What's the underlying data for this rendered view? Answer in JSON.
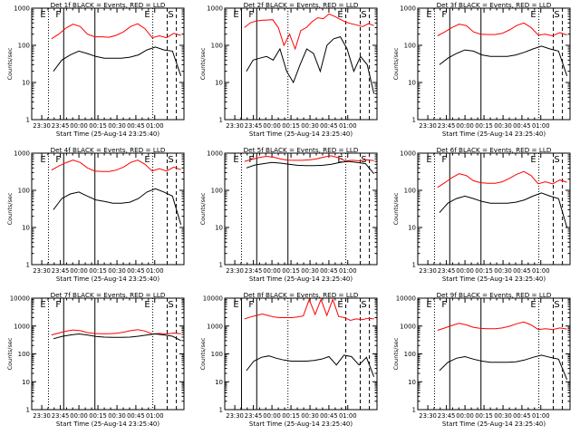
{
  "figure": {
    "background": "#ffffff",
    "axis_color": "#000000",
    "events_color": "#000000",
    "lld_color": "#ff0000"
  },
  "chart_data": [
    {
      "type": "line",
      "title": "Det 1f BLACK = Events, RED = LLD",
      "xlabel": "Start Time (25-Aug-14 23:25:40)",
      "ylabel": "Counts/sec",
      "yscale": "log",
      "ylim": [
        1,
        1000
      ],
      "yticks": [
        "1",
        "10",
        "100",
        "1000"
      ],
      "xticks": [
        "23:30",
        "23:45",
        "00:00",
        "00:15",
        "00:30",
        "00:45",
        "01:00"
      ],
      "markers": [
        {
          "label": "E",
          "style": "dotted"
        },
        {
          "label": "F",
          "style": "solid"
        },
        {
          "label": "",
          "style": "solid"
        },
        {
          "label": "E",
          "style": "dotted"
        },
        {
          "label": "",
          "style": "dashed"
        },
        {
          "label": "S",
          "style": "dashed"
        }
      ],
      "series": [
        {
          "role": "events",
          "start_index": 1,
          "values": [
            20,
            40,
            55,
            70,
            60,
            50,
            45,
            45,
            45,
            48,
            55,
            75,
            90,
            75,
            70,
            15
          ]
        },
        {
          "role": "lld",
          "start_index": 0,
          "values": [
            150,
            200,
            290,
            370,
            320,
            200,
            170,
            170,
            165,
            185,
            230,
            320,
            380,
            280,
            160,
            180,
            160,
            210,
            185
          ]
        }
      ]
    },
    {
      "type": "line",
      "title": "Det 2f BLACK = Events, RED = LLD",
      "xlabel": "Start Time (25-Aug-14 23:25:40)",
      "ylabel": "Counts/sec",
      "yscale": "log",
      "ylim": [
        1,
        1000
      ],
      "yticks": [
        "1",
        "10",
        "100",
        "1000"
      ],
      "xticks": [
        "23:30",
        "23:45",
        "00:00",
        "00:15",
        "00:30",
        "00:45",
        "01:00"
      ],
      "markers": [
        {
          "label": "E",
          "style": "solid"
        },
        {
          "label": "F",
          "style": "solid"
        },
        {
          "label": "",
          "style": "dotted"
        },
        {
          "label": "E",
          "style": "dashed"
        },
        {
          "label": "",
          "style": "dashed"
        },
        {
          "label": "S",
          "style": "dashed"
        }
      ],
      "series": [
        {
          "role": "events",
          "start_index": 1,
          "values": [
            20,
            40,
            45,
            50,
            40,
            80,
            20,
            10,
            30,
            80,
            60,
            20,
            100,
            150,
            170,
            80,
            20,
            50,
            30,
            5
          ]
        },
        {
          "role": "lld",
          "start_index": 0,
          "values": [
            300,
            400,
            450,
            470,
            480,
            490,
            300,
            100,
            200,
            80,
            250,
            300,
            430,
            550,
            520,
            700,
            600,
            500,
            420,
            380,
            350,
            320,
            380,
            340
          ]
        }
      ]
    },
    {
      "type": "line",
      "title": "Det 3f BLACK = Events, RED = LLD",
      "xlabel": "Start Time (25-Aug-14 23:25:40)",
      "ylabel": "Counts/sec",
      "yscale": "log",
      "ylim": [
        1,
        1000
      ],
      "yticks": [
        "1",
        "10",
        "100",
        "1000"
      ],
      "xticks": [
        "23:30",
        "23:45",
        "00:00",
        "00:15",
        "00:30",
        "00:45",
        "01:00"
      ],
      "markers": [
        {
          "label": "E",
          "style": "dotted"
        },
        {
          "label": "F",
          "style": "solid"
        },
        {
          "label": "",
          "style": "solid"
        },
        {
          "label": "E",
          "style": "dotted"
        },
        {
          "label": "",
          "style": "dashed"
        },
        {
          "label": "S",
          "style": "dashed"
        }
      ],
      "series": [
        {
          "role": "events",
          "start_index": 1,
          "values": [
            30,
            45,
            60,
            75,
            70,
            55,
            50,
            50,
            50,
            55,
            65,
            80,
            95,
            80,
            70,
            15
          ]
        },
        {
          "role": "lld",
          "start_index": 0,
          "values": [
            180,
            230,
            300,
            370,
            340,
            230,
            200,
            195,
            195,
            210,
            260,
            340,
            400,
            300,
            190,
            200,
            180,
            220,
            190
          ]
        }
      ]
    },
    {
      "type": "line",
      "title": "Det 4f BLACK = Events, RED = LLD",
      "xlabel": "Start Time (25-Aug-14 23:25:40)",
      "ylabel": "Counts/sec",
      "yscale": "log",
      "ylim": [
        1,
        1000
      ],
      "yticks": [
        "1",
        "10",
        "100",
        "1000"
      ],
      "xticks": [
        "23:30",
        "23:45",
        "00:00",
        "00:15",
        "00:30",
        "00:45",
        "01:00"
      ],
      "markers": [
        {
          "label": "E",
          "style": "dotted"
        },
        {
          "label": "F",
          "style": "solid"
        },
        {
          "label": "",
          "style": "solid"
        },
        {
          "label": "E",
          "style": "dotted"
        },
        {
          "label": "",
          "style": "dashed"
        },
        {
          "label": "S",
          "style": "dashed"
        }
      ],
      "series": [
        {
          "role": "events",
          "start_index": 1,
          "values": [
            30,
            60,
            80,
            90,
            70,
            55,
            50,
            45,
            45,
            48,
            60,
            90,
            110,
            90,
            70,
            12
          ]
        },
        {
          "role": "lld",
          "start_index": 0,
          "values": [
            350,
            450,
            550,
            650,
            560,
            400,
            330,
            320,
            320,
            350,
            420,
            560,
            650,
            500,
            330,
            380,
            330,
            420,
            360
          ]
        }
      ]
    },
    {
      "type": "line",
      "title": "Det 5f BLACK = Events, RED = LLD",
      "xlabel": "Start Time (25-Aug-14 23:25:40)",
      "ylabel": "Counts/sec",
      "yscale": "log",
      "ylim": [
        1,
        1000
      ],
      "yticks": [
        "1",
        "10",
        "100",
        "1000"
      ],
      "xticks": [
        "23:30",
        "23:45",
        "00:00",
        "00:15",
        "00:30",
        "00:45",
        "01:00"
      ],
      "markers": [
        {
          "label": "E",
          "style": "dotted"
        },
        {
          "label": "F",
          "style": "solid"
        },
        {
          "label": "",
          "style": "solid"
        },
        {
          "label": "E",
          "style": "dotted"
        },
        {
          "label": "",
          "style": "dashed"
        },
        {
          "label": "S",
          "style": "dashed"
        }
      ],
      "series": [
        {
          "role": "events",
          "start_index": 1,
          "values": [
            400,
            480,
            520,
            560,
            540,
            500,
            470,
            460,
            460,
            470,
            500,
            560,
            600,
            560,
            520,
            280
          ]
        },
        {
          "role": "lld",
          "start_index": 0,
          "values": [
            600,
            680,
            760,
            820,
            780,
            700,
            650,
            640,
            640,
            660,
            700,
            780,
            850,
            760,
            620,
            640,
            620,
            660,
            630
          ]
        }
      ]
    },
    {
      "type": "line",
      "title": "Det 6f BLACK = Events, RED = LLD",
      "xlabel": "Start Time (25-Aug-14 23:25:40)",
      "ylabel": "Counts/sec",
      "yscale": "log",
      "ylim": [
        1,
        1000
      ],
      "yticks": [
        "1",
        "10",
        "100",
        "1000"
      ],
      "xticks": [
        "23:30",
        "23:45",
        "00:00",
        "00:15",
        "00:30",
        "00:45",
        "01:00"
      ],
      "markers": [
        {
          "label": "E",
          "style": "dotted"
        },
        {
          "label": "F",
          "style": "solid"
        },
        {
          "label": "",
          "style": "solid"
        },
        {
          "label": "E",
          "style": "dotted"
        },
        {
          "label": "",
          "style": "dashed"
        },
        {
          "label": "S",
          "style": "dashed"
        }
      ],
      "series": [
        {
          "role": "events",
          "start_index": 1,
          "values": [
            25,
            45,
            60,
            70,
            60,
            50,
            45,
            45,
            45,
            48,
            55,
            70,
            85,
            70,
            60,
            10
          ]
        },
        {
          "role": "lld",
          "start_index": 0,
          "values": [
            120,
            160,
            220,
            280,
            250,
            180,
            160,
            155,
            155,
            170,
            210,
            270,
            320,
            250,
            150,
            170,
            150,
            190,
            165
          ]
        }
      ]
    },
    {
      "type": "line",
      "title": "Det 7f BLACK = Events, RED = LLD",
      "xlabel": "Start Time (25-Aug-14 23:25:40)",
      "ylabel": "Counts/sec",
      "yscale": "log",
      "ylim": [
        1,
        10000
      ],
      "yticks": [
        "1",
        "10",
        "100",
        "1000",
        "10000"
      ],
      "xticks": [
        "23:30",
        "23:45",
        "00:00",
        "00:15",
        "00:30",
        "00:45",
        "01:00"
      ],
      "markers": [
        {
          "label": "E",
          "style": "dotted"
        },
        {
          "label": "F",
          "style": "solid"
        },
        {
          "label": "",
          "style": "solid"
        },
        {
          "label": "E",
          "style": "dotted"
        },
        {
          "label": "",
          "style": "dashed"
        },
        {
          "label": "S",
          "style": "dashed"
        }
      ],
      "series": [
        {
          "role": "events",
          "start_index": 1,
          "values": [
            350,
            420,
            480,
            520,
            480,
            420,
            400,
            390,
            390,
            400,
            430,
            480,
            520,
            480,
            430,
            300
          ]
        },
        {
          "role": "lld",
          "start_index": 0,
          "values": [
            480,
            560,
            650,
            720,
            680,
            580,
            540,
            530,
            530,
            550,
            600,
            680,
            740,
            660,
            520,
            540,
            520,
            560,
            530
          ]
        }
      ]
    },
    {
      "type": "line",
      "title": "Det 8f BLACK = Events, RED = LLD",
      "xlabel": "Start Time (25-Aug-14 23:25:40)",
      "ylabel": "Counts/sec",
      "yscale": "log",
      "ylim": [
        1,
        10000
      ],
      "yticks": [
        "1",
        "10",
        "100",
        "1000",
        "10000"
      ],
      "xticks": [
        "23:30",
        "23:45",
        "00:00",
        "00:15",
        "00:30",
        "00:45",
        "01:00"
      ],
      "markers": [
        {
          "label": "E",
          "style": "solid"
        },
        {
          "label": "F",
          "style": "solid"
        },
        {
          "label": "",
          "style": "dotted"
        },
        {
          "label": "E",
          "style": "dashed"
        },
        {
          "label": "",
          "style": "dashed"
        },
        {
          "label": "S",
          "style": "dashed"
        }
      ],
      "series": [
        {
          "role": "events",
          "start_index": 1,
          "values": [
            25,
            55,
            75,
            85,
            70,
            60,
            55,
            55,
            55,
            58,
            65,
            80,
            40,
            90,
            80,
            40,
            75,
            15
          ]
        },
        {
          "role": "lld",
          "start_index": 0,
          "values": [
            1800,
            2100,
            2400,
            2700,
            2400,
            2100,
            2000,
            2000,
            2000,
            2100,
            2300,
            9000,
            2600,
            9000,
            2400,
            9000,
            2200,
            2000,
            1600,
            1800,
            1700,
            1900,
            1800
          ]
        }
      ]
    },
    {
      "type": "line",
      "title": "Det 9f BLACK = Events, RED = LLD",
      "xlabel": "Start Time (25-Aug-14 23:25:40)",
      "ylabel": "Counts/sec",
      "yscale": "log",
      "ylim": [
        1,
        10000
      ],
      "yticks": [
        "1",
        "10",
        "100",
        "1000",
        "10000"
      ],
      "xticks": [
        "23:30",
        "23:45",
        "00:00",
        "00:15",
        "00:30",
        "00:45",
        "01:00"
      ],
      "markers": [
        {
          "label": "E",
          "style": "dotted"
        },
        {
          "label": "F",
          "style": "solid"
        },
        {
          "label": "",
          "style": "solid"
        },
        {
          "label": "E",
          "style": "dotted"
        },
        {
          "label": "",
          "style": "dashed"
        },
        {
          "label": "S",
          "style": "dashed"
        }
      ],
      "series": [
        {
          "role": "events",
          "start_index": 1,
          "values": [
            25,
            50,
            70,
            80,
            65,
            55,
            50,
            50,
            50,
            52,
            60,
            75,
            90,
            75,
            65,
            12
          ]
        },
        {
          "role": "lld",
          "start_index": 0,
          "values": [
            700,
            850,
            1050,
            1250,
            1100,
            900,
            820,
            800,
            800,
            850,
            980,
            1200,
            1400,
            1100,
            750,
            800,
            750,
            850,
            780
          ]
        }
      ]
    }
  ]
}
